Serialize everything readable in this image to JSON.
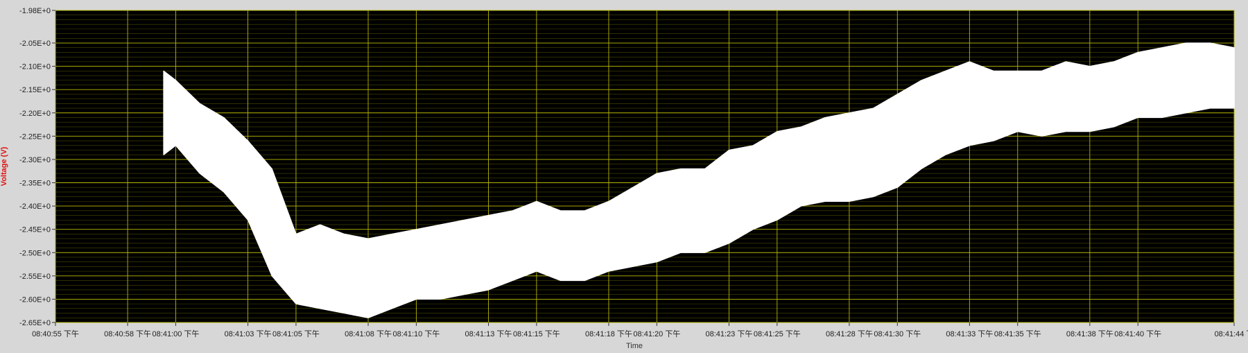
{
  "chart_data": {
    "type": "area",
    "title": "",
    "xlabel": "Time",
    "ylabel": "Voltage (V)",
    "ylim": [
      -2.65,
      -1.98
    ],
    "y_ticks": [
      "-1.98E+0",
      "-2.05E+0",
      "-2.10E+0",
      "-2.15E+0",
      "-2.20E+0",
      "-2.25E+0",
      "-2.30E+0",
      "-2.35E+0",
      "-2.40E+0",
      "-2.45E+0",
      "-2.50E+0",
      "-2.55E+0",
      "-2.60E+0",
      "-2.65E+0"
    ],
    "x_ticks": [
      "08:40:55 下午",
      "08:40:58 下午",
      "08:41:00 下午",
      "08:41:03 下午",
      "08:41:05 下午",
      "08:41:08 下午",
      "08:41:10 下午",
      "08:41:13 下午",
      "08:41:15 下午",
      "08:41:18 下午",
      "08:41:20 下午",
      "08:41:23 下午",
      "08:41:25 下午",
      "08:41:28 下午",
      "08:41:30 下午",
      "08:41:33 下午",
      "08:41:35 下午",
      "08:41:38 下午",
      "08:41:40 下午",
      "08:41:44 下"
    ],
    "grid": true,
    "colors": {
      "background": "#000000",
      "major_grid": "#b8b800",
      "minor_grid": "#4a4a00",
      "trace": "#ffffff",
      "ylabel": "#e01010",
      "frame": "#d7d7d7"
    },
    "series": [
      {
        "x": [
          "08:40:59.5",
          "08:41:00",
          "08:41:01",
          "08:41:02",
          "08:41:03",
          "08:41:04",
          "08:41:05",
          "08:41:06",
          "08:41:07",
          "08:41:08",
          "08:41:09",
          "08:41:10",
          "08:41:11",
          "08:41:12",
          "08:41:13",
          "08:41:14",
          "08:41:15",
          "08:41:16",
          "08:41:17",
          "08:41:18",
          "08:41:19",
          "08:41:20",
          "08:41:21",
          "08:41:22",
          "08:41:23",
          "08:41:24",
          "08:41:25",
          "08:41:26",
          "08:41:27",
          "08:41:28",
          "08:41:29",
          "08:41:30",
          "08:41:31",
          "08:41:32",
          "08:41:33",
          "08:41:34",
          "08:41:35",
          "08:41:36",
          "08:41:37",
          "08:41:38",
          "08:41:39",
          "08:41:40",
          "08:41:41",
          "08:41:42",
          "08:41:43",
          "08:41:44"
        ],
        "upper": [
          -2.11,
          -2.13,
          -2.18,
          -2.21,
          -2.26,
          -2.32,
          -2.46,
          -2.44,
          -2.46,
          -2.47,
          -2.46,
          -2.45,
          -2.44,
          -2.43,
          -2.42,
          -2.41,
          -2.39,
          -2.41,
          -2.41,
          -2.39,
          -2.36,
          -2.33,
          -2.32,
          -2.32,
          -2.28,
          -2.27,
          -2.24,
          -2.23,
          -2.21,
          -2.2,
          -2.19,
          -2.16,
          -2.13,
          -2.11,
          -2.09,
          -2.11,
          -2.11,
          -2.11,
          -2.09,
          -2.1,
          -2.09,
          -2.07,
          -2.06,
          -2.05,
          -2.05,
          -2.06
        ],
        "lower": [
          -2.29,
          -2.27,
          -2.33,
          -2.37,
          -2.43,
          -2.55,
          -2.61,
          -2.62,
          -2.63,
          -2.64,
          -2.62,
          -2.6,
          -2.6,
          -2.59,
          -2.58,
          -2.56,
          -2.54,
          -2.56,
          -2.56,
          -2.54,
          -2.53,
          -2.52,
          -2.5,
          -2.5,
          -2.48,
          -2.45,
          -2.43,
          -2.4,
          -2.39,
          -2.39,
          -2.38,
          -2.36,
          -2.32,
          -2.29,
          -2.27,
          -2.26,
          -2.24,
          -2.25,
          -2.24,
          -2.24,
          -2.23,
          -2.21,
          -2.21,
          -2.2,
          -2.19,
          -2.19
        ]
      }
    ]
  }
}
